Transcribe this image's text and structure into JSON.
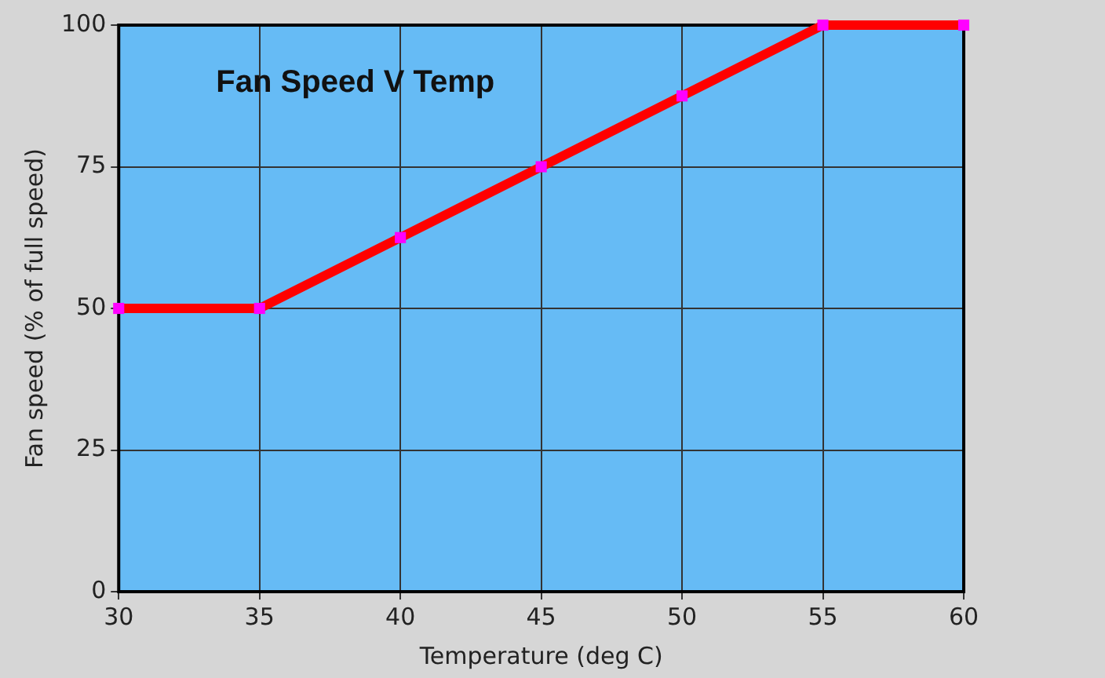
{
  "chart_data": {
    "type": "line",
    "title": "Fan Speed V Temp",
    "xlabel": "Temperature (deg C)",
    "ylabel": "Fan speed (% of full speed)",
    "x": [
      30,
      35,
      40,
      45,
      50,
      55,
      60
    ],
    "series": [
      {
        "color": "#ff0000",
        "values": [
          50,
          50,
          62.5,
          75,
          87.5,
          100,
          100
        ]
      }
    ],
    "xlim": [
      30,
      60
    ],
    "xticks": [
      30,
      35,
      40,
      45,
      50,
      55,
      60
    ],
    "ylim": [
      0,
      100
    ],
    "yticks": [
      0,
      25,
      50,
      75,
      100
    ],
    "grid": true,
    "legend": false,
    "marker": "square",
    "line_style": "solid"
  }
}
